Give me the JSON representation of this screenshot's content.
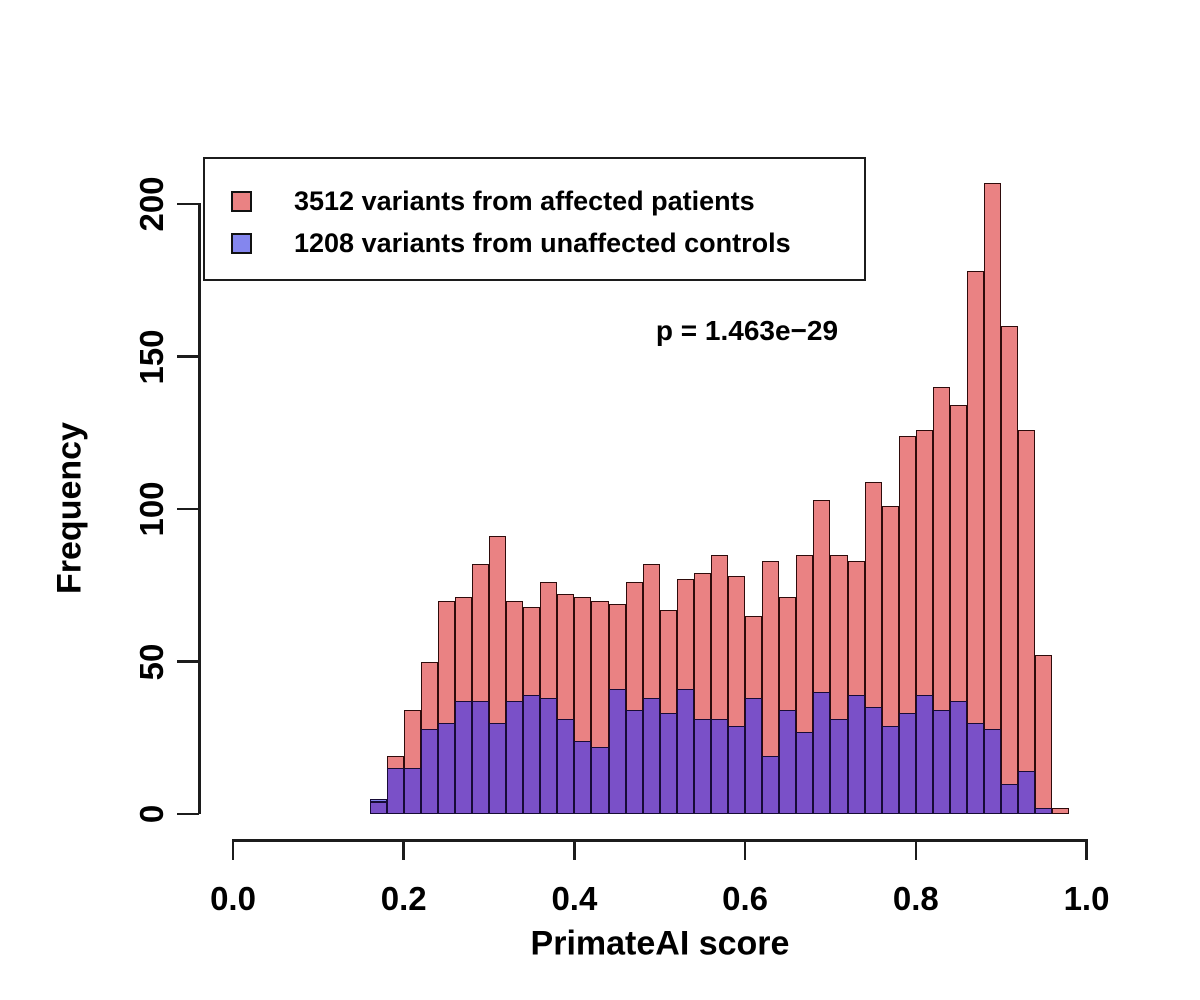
{
  "chart_data": {
    "type": "bar",
    "subtype": "overlaid-histograms",
    "title": "",
    "xlabel": "PrimateAI score",
    "ylabel": "Frequency",
    "xlim": [
      0.0,
      1.0
    ],
    "ylim": [
      0,
      200
    ],
    "grid": false,
    "legend_position": "top-left",
    "x_tick_labels": [
      "0.0",
      "0.2",
      "0.4",
      "0.6",
      "0.8",
      "1.0"
    ],
    "x_tick_values": [
      0.0,
      0.2,
      0.4,
      0.6,
      0.8,
      1.0
    ],
    "y_tick_labels": [
      "0",
      "50",
      "100",
      "150",
      "200"
    ],
    "y_tick_values": [
      0,
      50,
      100,
      150,
      200
    ],
    "bin_start": 0.16,
    "bin_width": 0.02,
    "bin_edges_note": "41 bins from 0.16 to 0.98",
    "series": [
      {
        "name": "3512 variants from affected patients",
        "legend_color": "#EA8283",
        "fill_color": "#EA8283",
        "border_color": "#2e0b0b",
        "values": [
          4,
          19,
          34,
          50,
          70,
          71,
          82,
          91,
          70,
          68,
          76,
          72,
          71,
          70,
          69,
          76,
          82,
          67,
          77,
          79,
          85,
          78,
          65,
          83,
          71,
          85,
          103,
          85,
          83,
          109,
          101,
          124,
          126,
          140,
          134,
          178,
          207,
          160,
          126,
          52,
          2
        ]
      },
      {
        "name": "1208 variants from unaffected controls",
        "legend_color": "#8486EE",
        "fill_color": "#7A50C8",
        "border_color": "#170b36",
        "values": [
          5,
          15,
          15,
          28,
          30,
          37,
          37,
          30,
          37,
          39,
          38,
          31,
          24,
          22,
          41,
          34,
          38,
          33,
          41,
          31,
          31,
          29,
          38,
          19,
          34,
          27,
          40,
          31,
          39,
          35,
          29,
          33,
          39,
          34,
          37,
          30,
          28,
          10,
          14,
          2,
          0
        ]
      }
    ],
    "annotation": "p = 1.463e−29"
  },
  "legend": {
    "items": [
      {
        "label": "3512 variants from affected patients",
        "color": "#EA8283"
      },
      {
        "label": "1208 variants from unaffected controls",
        "color": "#8486EE"
      }
    ]
  }
}
